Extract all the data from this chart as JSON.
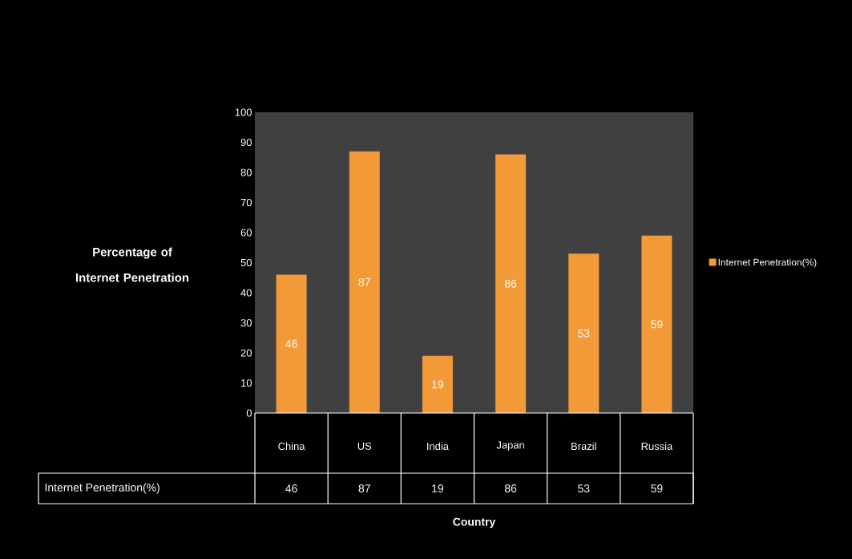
{
  "chart_data": {
    "type": "bar",
    "annotations": [
      "Country",
      "46",
      "87",
      "19",
      "86",
      "53",
      "59"
    ],
    "ylabel": "Percentage of Internet Penetration",
    "categories": [
      "China",
      "US",
      "India",
      "Japan",
      "Brazil",
      "Russia"
    ],
    "series": [
      {
        "name": "Internet Penetration(%)",
        "color": "#f39a38",
        "values": [
          46,
          87,
          19,
          86,
          53,
          59
        ]
      }
    ],
    "ylim": [
      0,
      100
    ],
    "yticks": [
      0,
      10,
      20,
      30,
      40,
      50,
      60,
      70,
      80,
      90,
      100
    ],
    "data_labels": true,
    "legend": "right"
  }
}
